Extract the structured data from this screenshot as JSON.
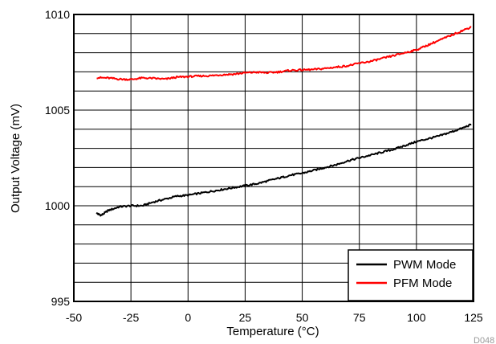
{
  "chart_data": {
    "type": "line",
    "xlabel": "Temperature  (°C)",
    "ylabel": "Output Voltage (mV)",
    "xlim": [
      -50,
      125
    ],
    "ylim": [
      995,
      1010
    ],
    "x_ticks": [
      "-50",
      "-25",
      "0",
      "25",
      "50",
      "75",
      "100",
      "125"
    ],
    "y_ticks": [
      "995",
      "1000",
      "1005",
      "1010"
    ],
    "grid": true,
    "legend_position": "bottom-right",
    "figure_code": "D048",
    "series": [
      {
        "name": "PWM Mode",
        "color": "#000000",
        "x": [
          -40,
          -38,
          -35,
          -30,
          -25,
          -20,
          -15,
          -10,
          -5,
          0,
          5,
          10,
          15,
          20,
          25,
          30,
          35,
          40,
          45,
          50,
          55,
          60,
          65,
          70,
          75,
          80,
          85,
          90,
          95,
          100,
          105,
          110,
          115,
          120,
          124
        ],
        "y": [
          999.6,
          999.5,
          999.75,
          999.95,
          1000.0,
          1000.0,
          1000.2,
          1000.35,
          1000.5,
          1000.55,
          1000.65,
          1000.75,
          1000.85,
          1000.95,
          1001.05,
          1001.15,
          1001.3,
          1001.45,
          1001.6,
          1001.7,
          1001.85,
          1002.0,
          1002.15,
          1002.35,
          1002.5,
          1002.65,
          1002.8,
          1002.95,
          1003.15,
          1003.35,
          1003.5,
          1003.65,
          1003.85,
          1004.05,
          1004.25
        ]
      },
      {
        "name": "PFM Mode",
        "color": "#ff0000",
        "x": [
          -40,
          -35,
          -30,
          -25,
          -20,
          -15,
          -10,
          -5,
          0,
          5,
          10,
          15,
          20,
          25,
          30,
          35,
          40,
          45,
          50,
          55,
          60,
          65,
          70,
          75,
          80,
          85,
          90,
          95,
          100,
          105,
          110,
          115,
          120,
          124
        ],
        "y": [
          1006.7,
          1006.68,
          1006.62,
          1006.6,
          1006.68,
          1006.66,
          1006.62,
          1006.72,
          1006.75,
          1006.78,
          1006.8,
          1006.85,
          1006.88,
          1006.95,
          1006.98,
          1006.95,
          1007.0,
          1007.08,
          1007.1,
          1007.12,
          1007.18,
          1007.25,
          1007.32,
          1007.45,
          1007.55,
          1007.7,
          1007.85,
          1008.0,
          1008.15,
          1008.4,
          1008.65,
          1008.9,
          1009.15,
          1009.35
        ]
      }
    ]
  }
}
